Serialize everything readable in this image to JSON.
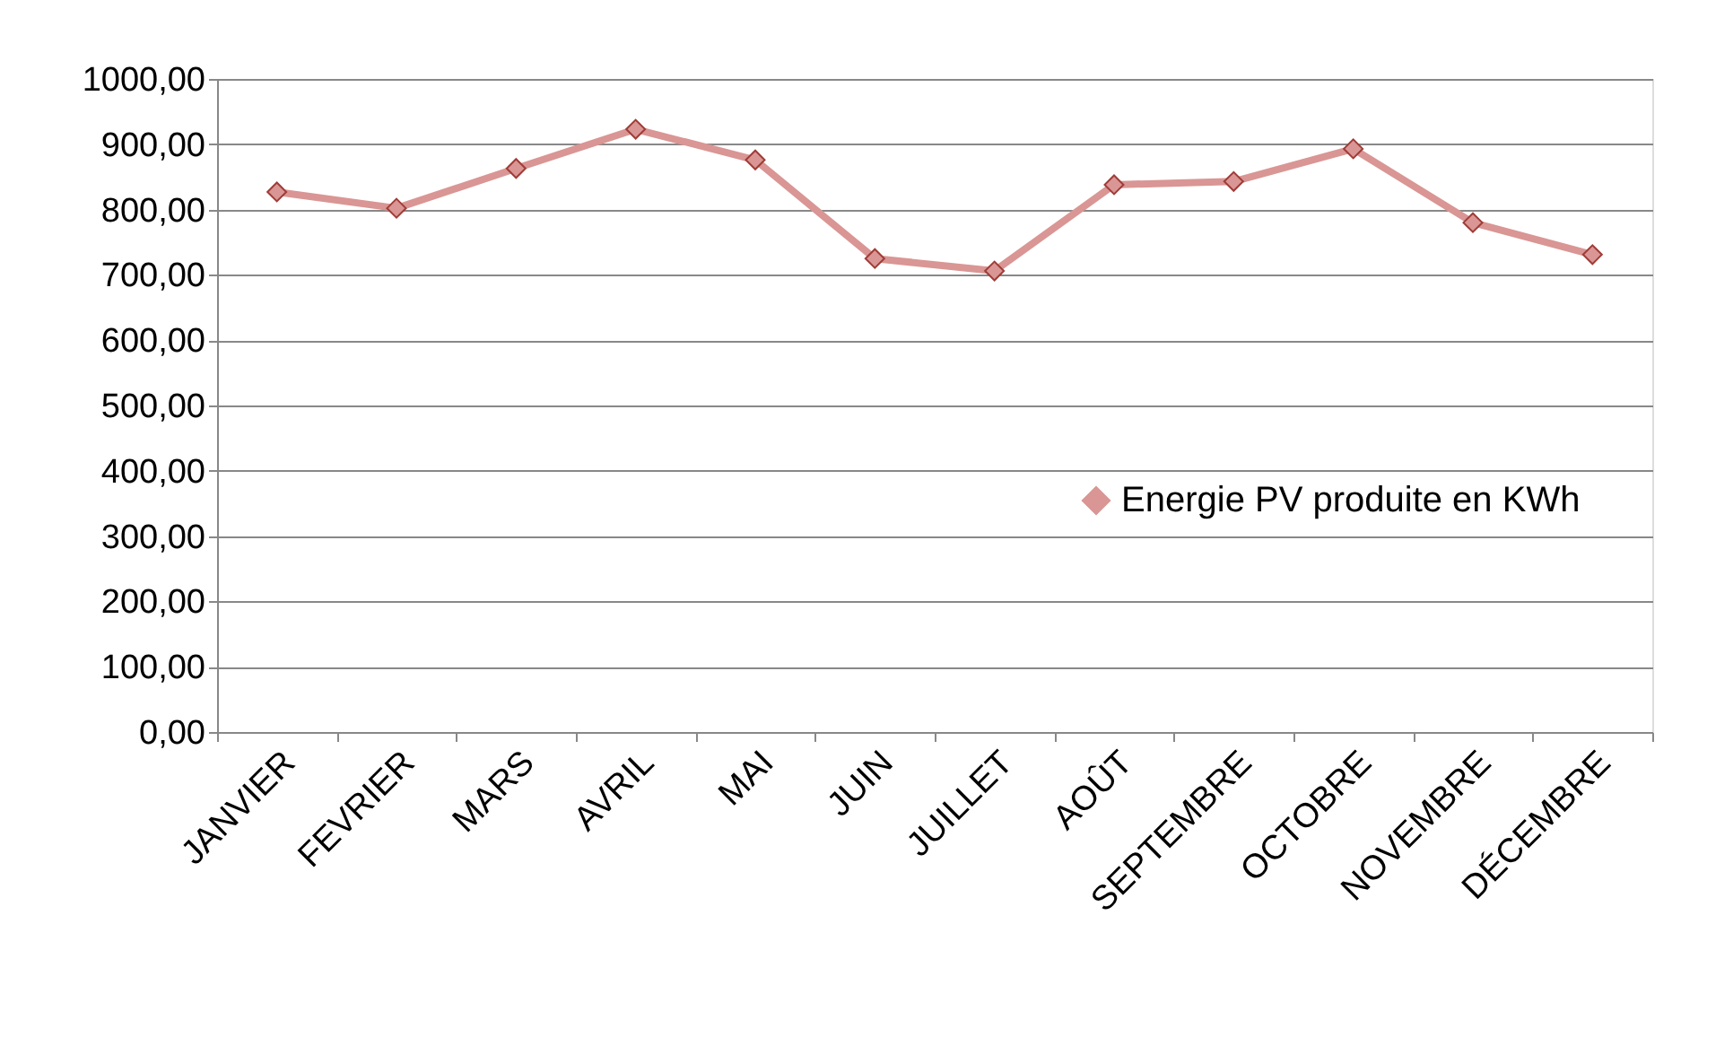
{
  "chart_data": {
    "type": "line",
    "categories": [
      "JANVIER",
      "FEVRIER",
      "MARS",
      "AVRIL",
      "MAI",
      "JUIN",
      "JUILLET",
      "AOÛT",
      "SEPTEMBRE",
      "OCTOBRE",
      "NOVEMBRE",
      "DÉCEMBRE"
    ],
    "series": [
      {
        "name": "Energie PV produite en KWh",
        "color": "#d99694",
        "values": [
          827,
          802,
          863,
          923,
          876,
          725,
          706,
          838,
          843,
          893,
          780,
          731
        ]
      }
    ],
    "ylim": [
      0,
      1000
    ],
    "yticks": [
      {
        "value": 0,
        "label": "0,00"
      },
      {
        "value": 100,
        "label": "100,00"
      },
      {
        "value": 200,
        "label": "200,00"
      },
      {
        "value": 300,
        "label": "300,00"
      },
      {
        "value": 400,
        "label": "400,00"
      },
      {
        "value": 500,
        "label": "500,00"
      },
      {
        "value": 600,
        "label": "600,00"
      },
      {
        "value": 700,
        "label": "700,00"
      },
      {
        "value": 800,
        "label": "800,00"
      },
      {
        "value": 900,
        "label": "900,00"
      },
      {
        "value": 1000,
        "label": "1000,00"
      }
    ],
    "grid": "y",
    "legend": "right",
    "marker": "diamond",
    "line_style": "solid"
  }
}
